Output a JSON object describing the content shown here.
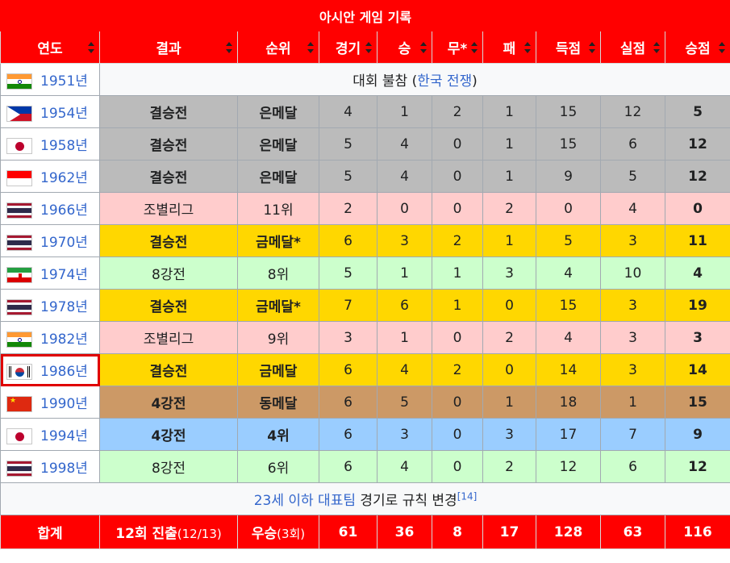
{
  "table": {
    "title": "아시안 게임 기록",
    "headers": [
      "연도",
      "결과",
      "순위",
      "경기",
      "승",
      "무*",
      "패",
      "득점",
      "실점",
      "승점"
    ],
    "rows": [
      {
        "year": "1951년",
        "flag": "india-flag-icon",
        "note": {
          "prefix": "대회 불참 (",
          "link": "한국 전쟁",
          "suffix": ")"
        }
      },
      {
        "year": "1954년",
        "flag": "philippines-flag-icon",
        "style": "gray",
        "bold": true,
        "result": "결승전",
        "rank": "은메달",
        "played": "4",
        "w": "1",
        "d": "2",
        "l": "1",
        "gf": "15",
        "ga": "12",
        "pts": "5"
      },
      {
        "year": "1958년",
        "flag": "japan-flag-icon",
        "style": "gray",
        "bold": true,
        "result": "결승전",
        "rank": "은메달",
        "played": "5",
        "w": "4",
        "d": "0",
        "l": "1",
        "gf": "15",
        "ga": "6",
        "pts": "12"
      },
      {
        "year": "1962년",
        "flag": "indonesia-flag-icon",
        "style": "gray",
        "bold": true,
        "result": "결승전",
        "rank": "은메달",
        "played": "5",
        "w": "4",
        "d": "0",
        "l": "1",
        "gf": "9",
        "ga": "5",
        "pts": "12"
      },
      {
        "year": "1966년",
        "flag": "thailand-flag-icon",
        "style": "pink",
        "bold": false,
        "result": "조별리그",
        "rank": "11위",
        "played": "2",
        "w": "0",
        "d": "0",
        "l": "2",
        "gf": "0",
        "ga": "4",
        "pts": "0"
      },
      {
        "year": "1970년",
        "flag": "thailand-flag-icon",
        "style": "gold",
        "bold": true,
        "result": "결승전",
        "rank": "금메달*",
        "played": "6",
        "w": "3",
        "d": "2",
        "l": "1",
        "gf": "5",
        "ga": "3",
        "pts": "11"
      },
      {
        "year": "1974년",
        "flag": "iran-flag-icon",
        "style": "green",
        "bold": false,
        "result": "8강전",
        "rank": "8위",
        "played": "5",
        "w": "1",
        "d": "1",
        "l": "3",
        "gf": "4",
        "ga": "10",
        "pts": "4"
      },
      {
        "year": "1978년",
        "flag": "thailand-flag-icon",
        "style": "gold",
        "bold": true,
        "result": "결승전",
        "rank": "금메달*",
        "played": "7",
        "w": "6",
        "d": "1",
        "l": "0",
        "gf": "15",
        "ga": "3",
        "pts": "19"
      },
      {
        "year": "1982년",
        "flag": "india-flag-icon",
        "style": "pink",
        "bold": false,
        "result": "조별리그",
        "rank": "9위",
        "played": "3",
        "w": "1",
        "d": "0",
        "l": "2",
        "gf": "4",
        "ga": "3",
        "pts": "3"
      },
      {
        "year": "1986년",
        "flag": "south-korea-flag-icon",
        "style": "gold",
        "bold": true,
        "highlight": true,
        "result": "결승전",
        "rank": "금메달",
        "played": "6",
        "w": "4",
        "d": "2",
        "l": "0",
        "gf": "14",
        "ga": "3",
        "pts": "14"
      },
      {
        "year": "1990년",
        "flag": "china-flag-icon",
        "style": "bronze",
        "bold": true,
        "result": "4강전",
        "rank": "동메달",
        "played": "6",
        "w": "5",
        "d": "0",
        "l": "1",
        "gf": "18",
        "ga": "1",
        "pts": "15"
      },
      {
        "year": "1994년",
        "flag": "japan-flag-icon",
        "style": "blue",
        "bold": true,
        "result": "4강전",
        "rank": "4위",
        "played": "6",
        "w": "3",
        "d": "0",
        "l": "3",
        "gf": "17",
        "ga": "7",
        "pts": "9"
      },
      {
        "year": "1998년",
        "flag": "thailand-flag-icon",
        "style": "green",
        "bold": false,
        "result": "8강전",
        "rank": "6위",
        "played": "6",
        "w": "4",
        "d": "0",
        "l": "2",
        "gf": "12",
        "ga": "6",
        "pts": "12"
      }
    ],
    "footnote": {
      "link": "23세 이하 대표팀",
      "text": " 경기로 규칙 변경",
      "ref": "[14]"
    },
    "total": {
      "label": "합계",
      "appear_main": "12회 진출",
      "appear_sub": "(12/13)",
      "rank_main": "우승",
      "rank_sub": "(3회)",
      "played": "61",
      "w": "36",
      "d": "8",
      "l": "17",
      "gf": "128",
      "ga": "63",
      "pts": "116"
    }
  },
  "colors": {
    "header": "#ff0000",
    "silver": "#bbbbbb",
    "gold": "#ffd700",
    "bronze": "#cc9966",
    "group": "#ffcccc",
    "quarter": "#ccffcc",
    "fourth": "#9acdff",
    "link": "#3366cc"
  }
}
